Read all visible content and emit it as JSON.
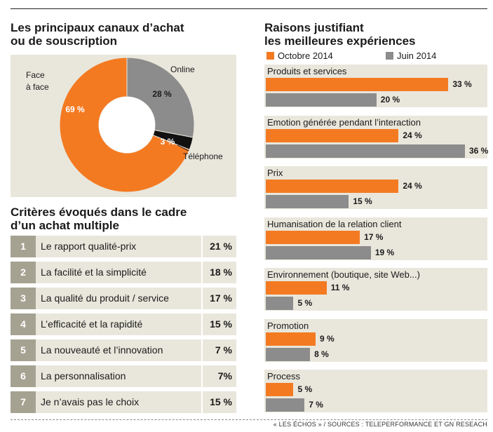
{
  "pie": {
    "title_line1": "Les principaux canaux d’achat",
    "title_line2": "ou de souscription",
    "colors": {
      "face": "#f47a22",
      "online": "#8c8c8c",
      "phone": "#111111"
    }
  },
  "criteria": {
    "title_line1": "Critères évoqués dans le cadre",
    "title_line2": "d’un achat multiple",
    "rows": [
      {
        "rank": "1",
        "label": "Le rapport qualité-prix",
        "value": "21 %"
      },
      {
        "rank": "2",
        "label": "La facilité et la simplicité",
        "value": "18 %"
      },
      {
        "rank": "3",
        "label": "La qualité du produit / service",
        "value": "17 %"
      },
      {
        "rank": "4",
        "label": "L’efficacité et la rapidité",
        "value": "15 %"
      },
      {
        "rank": "5",
        "label": "La nouveauté et l’innovation",
        "value": "7 %"
      },
      {
        "rank": "6",
        "label": "La personnalisation",
        "value": "7%"
      },
      {
        "rank": "7",
        "label": "Je n’avais pas le choix",
        "value": "15 %"
      }
    ]
  },
  "reasons": {
    "title_line1": "Raisons justifiant",
    "title_line2": "les meilleures expériences",
    "legend_a": "Octobre 2014",
    "legend_b": "Juin 2014",
    "color_a": "#f47a22",
    "color_b": "#8c8c8c"
  },
  "source": "« LES ÉCHOS » / SOURCES : TELEPERFORMANCE ET GN RESEACH",
  "chart_data": [
    {
      "type": "pie",
      "title": "Les principaux canaux d’achat ou de souscription",
      "slices": [
        {
          "name": "Face à face",
          "value": 69,
          "label": "69 %"
        },
        {
          "name": "Online",
          "value": 28,
          "label": "28 %"
        },
        {
          "name": "Téléphone",
          "value": 3,
          "label": "3 %"
        }
      ],
      "name_face_line1": "Face",
      "name_face_line2": "à face",
      "name_online": "Online",
      "name_phone": "Téléphone"
    },
    {
      "type": "bar",
      "title": "Raisons justifiant les meilleures expériences",
      "categories": [
        "Produits et services",
        "Emotion générée pendant l’interaction",
        "Prix",
        "Humanisation de la relation client",
        "Environnement (boutique, site Web...)",
        "Promotion",
        "Process"
      ],
      "series": [
        {
          "name": "Octobre 2014",
          "values": [
            33,
            24,
            24,
            17,
            11,
            9,
            5
          ],
          "labels": [
            "33 %",
            "24 %",
            "24 %",
            "17 %",
            "11 %",
            "9 %",
            "5 %"
          ]
        },
        {
          "name": "Juin 2014",
          "values": [
            20,
            36,
            15,
            19,
            5,
            8,
            7
          ],
          "labels": [
            "20 %",
            "36 %",
            "15 %",
            "19 %",
            "5 %",
            "8 %",
            "7 %"
          ]
        }
      ],
      "xlim": [
        0,
        36
      ]
    }
  ]
}
